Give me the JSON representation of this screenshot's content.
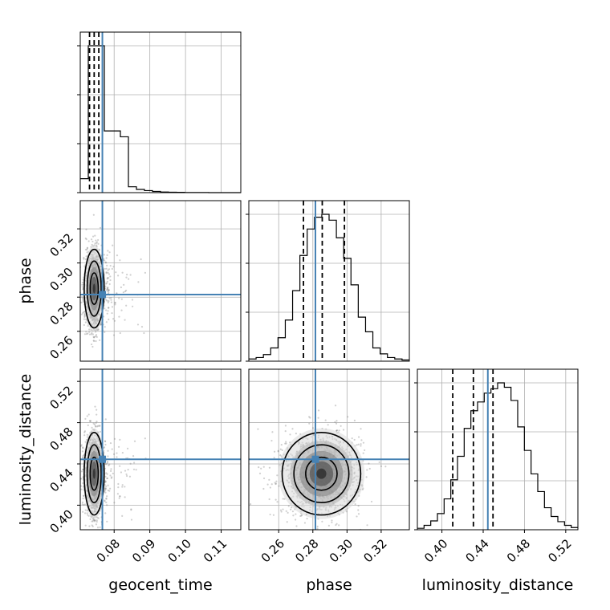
{
  "chart_data": {
    "type": "corner",
    "parameters": [
      "geocent_time",
      "phase",
      "luminosity_distance"
    ],
    "truth": {
      "geocent_time": 0.0767,
      "phase": 0.2815,
      "luminosity_distance": 0.4445
    },
    "truth_color": "#4682b4",
    "axis_ranges": {
      "geocent_time": [
        0.0705,
        0.1155
      ],
      "phase": [
        0.2425,
        0.3365
      ],
      "luminosity_distance": [
        0.3762,
        0.5318
      ]
    },
    "ticks": {
      "geocent_time": [
        "0.08",
        "0.09",
        "0.10",
        "0.11"
      ],
      "phase": [
        "0.26",
        "0.28",
        "0.30",
        "0.32"
      ],
      "luminosity_distance": [
        "0.40",
        "0.44",
        "0.48",
        "0.52"
      ]
    },
    "tick_values": {
      "geocent_time": [
        0.08,
        0.09,
        0.1,
        0.11
      ],
      "phase": [
        0.26,
        0.28,
        0.3,
        0.32
      ],
      "luminosity_distance": [
        0.4,
        0.44,
        0.48,
        0.52
      ]
    },
    "quantiles": {
      "geocent_time": [
        0.0731,
        0.0744,
        0.0757
      ],
      "phase": [
        0.2745,
        0.2855,
        0.2985
      ],
      "luminosity_distance": [
        0.4105,
        0.4305,
        0.4495
      ]
    },
    "histograms": {
      "geocent_time": {
        "range": [
          0.0705,
          0.1155
        ],
        "counts": [
          0.095,
          1.0,
          1.0,
          0.42,
          0.42,
          0.38,
          0.04,
          0.022,
          0.014,
          0.008,
          0.004,
          0.003,
          0.002,
          0.001,
          0.001,
          0.001,
          0,
          0,
          0,
          0
        ]
      },
      "phase": {
        "range": [
          0.2425,
          0.3365
        ],
        "counts": [
          0.015,
          0.025,
          0.045,
          0.09,
          0.16,
          0.28,
          0.48,
          0.72,
          0.9,
          0.98,
          1.0,
          0.96,
          0.84,
          0.7,
          0.52,
          0.3,
          0.2,
          0.09,
          0.05,
          0.025,
          0.015,
          0.008
        ]
      },
      "luminosity_distance": {
        "range": [
          0.3762,
          0.5318
        ],
        "counts": [
          0.01,
          0.03,
          0.06,
          0.11,
          0.21,
          0.34,
          0.5,
          0.69,
          0.81,
          0.87,
          0.93,
          0.96,
          1.0,
          0.97,
          0.88,
          0.7,
          0.54,
          0.38,
          0.26,
          0.15,
          0.09,
          0.055,
          0.03,
          0.015
        ]
      }
    },
    "density_2d": [
      {
        "x": "geocent_time",
        "y": "phase",
        "mean": [
          0.0744,
          0.285
        ],
        "sd": [
          0.0014,
          0.0115
        ]
      },
      {
        "x": "geocent_time",
        "y": "luminosity_distance",
        "mean": [
          0.0744,
          0.4305
        ],
        "sd": [
          0.0014,
          0.02
        ]
      },
      {
        "x": "phase",
        "y": "luminosity_distance",
        "mean": [
          0.285,
          0.4305
        ],
        "sd": [
          0.0115,
          0.02
        ]
      }
    ]
  }
}
